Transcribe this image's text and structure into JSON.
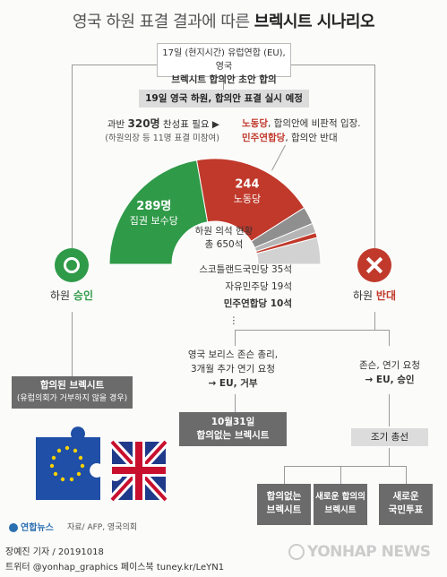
{
  "title": {
    "prefix": "영국 하원 표결 결과에 따른 ",
    "emph": "브렉시트 시나리오"
  },
  "top_box": {
    "line1": "17일 (현지시간) 유럽연합 (EU), 영국",
    "line2": "브렉시트 합의안 초안 합의"
  },
  "vote_banner": "19일 영국 하원, 합의안 표결 실시 예정",
  "majority": {
    "line1_a": "과반 ",
    "line1_b": "320명",
    "line1_c": " 찬성표 필요",
    "line2": "(하원의장 등 11명 표결 미참여)"
  },
  "labour_note": {
    "a": "노동당",
    "b": ", 합의안에 비판적 입장.",
    "c": "민주연합당",
    "d": ", 합의안 반대"
  },
  "seats": {
    "title": "하원 의석 현황",
    "total": "총 650석"
  },
  "chart_data": {
    "type": "pie",
    "title": "하원 의석 현황",
    "total": 650,
    "slices": [
      {
        "label": "집권 보수당",
        "value": 289,
        "value_label": "289명",
        "color": "#2f9a48"
      },
      {
        "label": "노동당",
        "value": 244,
        "value_label": "244",
        "color": "#c0392b"
      },
      {
        "label": "스코틀랜드국민당",
        "value": 35,
        "value_label": "35석",
        "color": "#8f8f8f"
      },
      {
        "label": "자유민주당",
        "value": 19,
        "value_label": "19석",
        "color": "#b5b5b5"
      },
      {
        "label": "민주연합당",
        "value": 10,
        "value_label": "10석",
        "color": "#c0392b"
      },
      {
        "label": "",
        "value": 53,
        "value_label": "",
        "color": "#d2d2d2"
      }
    ],
    "legend_lines": [
      {
        "name": "스코틀랜드국민당",
        "seats": "35석"
      },
      {
        "name": "자유민주당",
        "seats": "19석"
      },
      {
        "name": "민주연합당",
        "seats": "10석"
      }
    ],
    "ellipsis": "⋮"
  },
  "approve": {
    "label_a": "하원 ",
    "label_b": "승인",
    "icon_color": "#2f9a48"
  },
  "reject": {
    "label_a": "하원 ",
    "label_b": "반대",
    "icon_color": "#c0392b"
  },
  "agreed_box": {
    "line1": "합의된 브렉시트",
    "line2": "(유럽의회가 거부하지 않을 경우)"
  },
  "johnson_box": {
    "line1": "영국 보리스 존슨 총리,",
    "line2": "3개월 추가 연기 요청",
    "line3": "→ EU, 거부"
  },
  "nodeal_box": {
    "line1": "10월31일",
    "line2": "합의없는 브렉시트"
  },
  "delay_box": {
    "line1": "존슨, 연기 요청",
    "line2": "→ EU, 승인"
  },
  "election_box": "조기 총선",
  "outcomes": [
    {
      "line1": "합의없는",
      "line2": "브렉시트"
    },
    {
      "line1": "새로운 합의의",
      "line2": "브렉시트"
    },
    {
      "line1": "새로운",
      "line2": "국민투표"
    }
  ],
  "source": "자료/ AFP, 영국의회",
  "agency_logo": "연합뉴스",
  "footer": {
    "line1": "장예진 기자 / 20191018",
    "line2": "트위터 @yonhap_graphics  페이스북 tuney.kr/LeYN1"
  },
  "watermark": "YONHAP NEWS"
}
